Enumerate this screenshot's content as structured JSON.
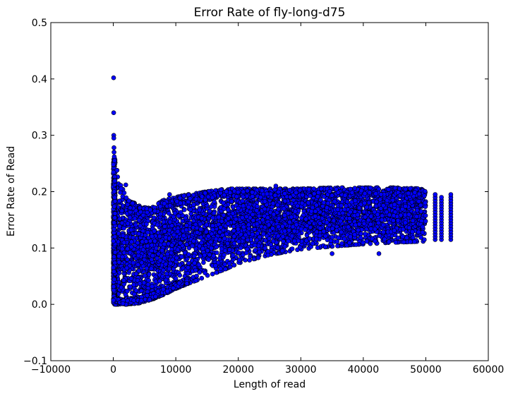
{
  "chart_data": {
    "type": "scatter",
    "title": "Error Rate of fly-long-d75",
    "xlabel": "Length of read",
    "ylabel": "Error Rate of Read",
    "xlim": [
      -10000,
      60000
    ],
    "ylim": [
      -0.1,
      0.5
    ],
    "xticks": [
      -10000,
      0,
      10000,
      20000,
      30000,
      40000,
      50000,
      60000
    ],
    "yticks": [
      -0.1,
      0.0,
      0.1,
      0.2,
      0.3,
      0.4,
      0.5
    ],
    "grid": false,
    "marker_color": "#0000ff",
    "marker_edge_color": "#000000",
    "envelope": {
      "x": [
        0,
        1000,
        2000,
        4000,
        6000,
        8000,
        10000,
        12000,
        15000,
        18000,
        20000,
        25000,
        30000,
        35000,
        40000,
        45000,
        50000,
        54000
      ],
      "y_low": [
        0.0,
        0.0,
        0.0,
        0.002,
        0.008,
        0.017,
        0.028,
        0.037,
        0.05,
        0.063,
        0.073,
        0.088,
        0.098,
        0.103,
        0.107,
        0.11,
        0.112,
        0.115
      ],
      "y_high": [
        0.24,
        0.22,
        0.19,
        0.175,
        0.17,
        0.185,
        0.19,
        0.195,
        0.2,
        0.205,
        0.205,
        0.205,
        0.205,
        0.207,
        0.207,
        0.207,
        0.205,
        0.2
      ]
    },
    "outliers": [
      {
        "x": 50,
        "y": 0.402
      },
      {
        "x": 60,
        "y": 0.34
      },
      {
        "x": 70,
        "y": 0.3
      },
      {
        "x": 80,
        "y": 0.295
      },
      {
        "x": 100,
        "y": 0.278
      },
      {
        "x": 120,
        "y": 0.27
      },
      {
        "x": 150,
        "y": 0.262
      },
      {
        "x": 200,
        "y": 0.255
      },
      {
        "x": 600,
        "y": 0.238
      },
      {
        "x": 2000,
        "y": 0.212
      },
      {
        "x": 9000,
        "y": 0.195
      },
      {
        "x": 26000,
        "y": 0.21
      },
      {
        "x": 42500,
        "y": 0.09
      },
      {
        "x": 35000,
        "y": 0.09
      }
    ],
    "tail_columns": [
      {
        "x": 51500,
        "ymin": 0.115,
        "ymax": 0.2
      },
      {
        "x": 52500,
        "ymin": 0.115,
        "ymax": 0.195
      },
      {
        "x": 54000,
        "ymin": 0.115,
        "ymax": 0.2
      }
    ]
  }
}
